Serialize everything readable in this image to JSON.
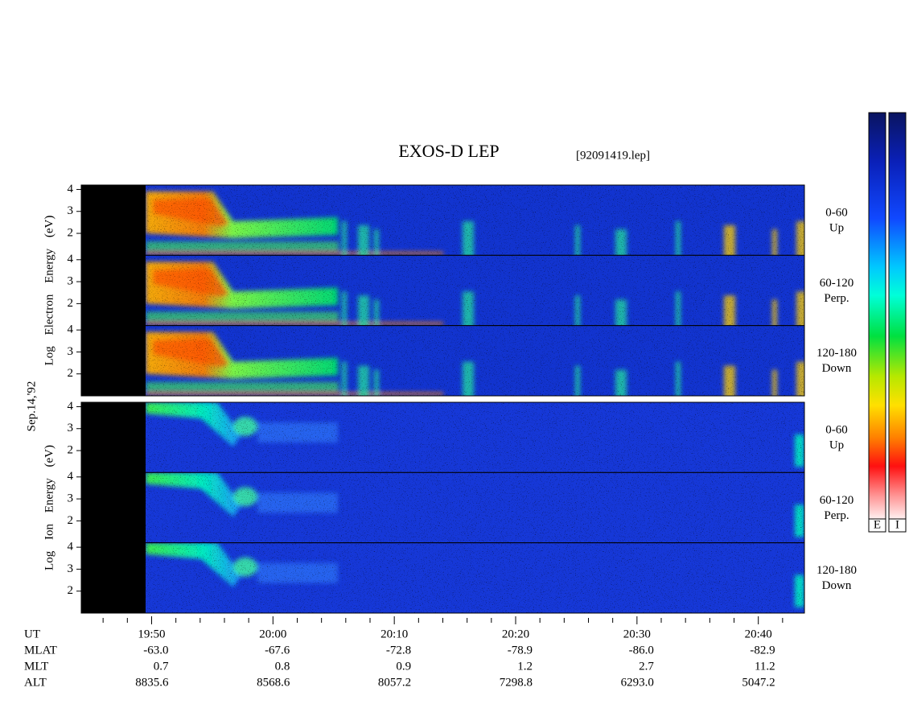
{
  "chart_data": {
    "type": "spectrogram",
    "title": "EXOS-D LEP",
    "subtitle": "[92091419.lep]",
    "date_label": "Sep.14,'92",
    "xlim": [
      44.2,
      103.8
    ],
    "xticks": [
      {
        "value": 50,
        "label": "19:50"
      },
      {
        "value": 60,
        "label": "20:00"
      },
      {
        "value": 70,
        "label": "20:10"
      },
      {
        "value": 80,
        "label": "20:20"
      },
      {
        "value": 90,
        "label": "20:30"
      },
      {
        "value": 100,
        "label": "20:40"
      }
    ],
    "xticks_minor": [
      46,
      48,
      52,
      54,
      56,
      58,
      62,
      64,
      66,
      68,
      72,
      74,
      76,
      78,
      82,
      84,
      86,
      88,
      92,
      94,
      96,
      98,
      102
    ],
    "ylim": [
      1,
      4.2
    ],
    "yticks": [
      2,
      3,
      4
    ],
    "groups": [
      {
        "ylabel": "Log  Electron  Energy (eV)",
        "panels": [
          {
            "angle": "0-60",
            "direction": "Up"
          },
          {
            "angle": "60-120",
            "direction": "Perp."
          },
          {
            "angle": "120-180",
            "direction": "Down"
          }
        ]
      },
      {
        "ylabel": "Log  Ion  Energy (eV)",
        "panels": [
          {
            "angle": "0-60",
            "direction": "Up"
          },
          {
            "angle": "60-120",
            "direction": "Perp."
          },
          {
            "angle": "120-180",
            "direction": "Down"
          }
        ]
      }
    ],
    "x_row_label": "UT",
    "ephemeris": [
      {
        "name": "MLAT",
        "values": [
          "-63.0",
          "-67.6",
          "-72.8",
          "-78.9",
          "-86.0",
          "-82.9"
        ]
      },
      {
        "name": "MLT",
        "values": [
          "0.7",
          "0.8",
          "0.9",
          "1.2",
          "2.7",
          "11.2"
        ]
      },
      {
        "name": "ALT",
        "values": [
          "8835.6",
          "8568.6",
          "8057.2",
          "7298.8",
          "6293.0",
          "5047.2"
        ]
      }
    ],
    "colorbar_labels": [
      "E",
      "I"
    ]
  }
}
